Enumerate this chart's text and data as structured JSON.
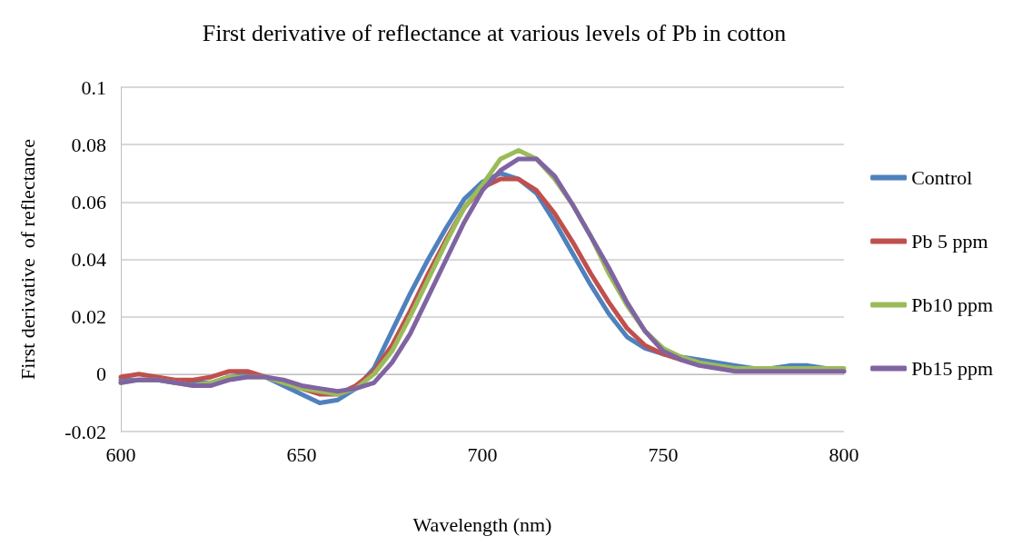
{
  "chart_data": {
    "type": "line",
    "title": "First derivative of reflectance at various levels of Pb in cotton",
    "xlabel": "Wavelength (nm)",
    "ylabel": "First derivative  of reflectance",
    "x": [
      600,
      605,
      610,
      615,
      620,
      625,
      630,
      635,
      640,
      645,
      650,
      655,
      660,
      665,
      670,
      675,
      680,
      685,
      690,
      695,
      700,
      705,
      710,
      715,
      720,
      725,
      730,
      735,
      740,
      745,
      750,
      755,
      760,
      765,
      770,
      775,
      780,
      785,
      790,
      795,
      800
    ],
    "series": [
      {
        "name": "Control",
        "color": "#4f81bd",
        "values": [
          -0.002,
          -0.002,
          -0.002,
          -0.003,
          -0.003,
          -0.003,
          -0.001,
          0,
          -0.001,
          -0.004,
          -0.007,
          -0.01,
          -0.009,
          -0.005,
          0.002,
          0.015,
          0.028,
          0.04,
          0.051,
          0.061,
          0.067,
          0.07,
          0.068,
          0.063,
          0.053,
          0.042,
          0.031,
          0.021,
          0.013,
          0.009,
          0.007,
          0.006,
          0.005,
          0.004,
          0.003,
          0.002,
          0.002,
          0.003,
          0.003,
          0.002,
          0.001
        ]
      },
      {
        "name": "Pb 5 ppm",
        "color": "#c0504d",
        "values": [
          -0.001,
          0,
          -0.001,
          -0.002,
          -0.002,
          -0.001,
          0.001,
          0.001,
          -0.001,
          -0.003,
          -0.005,
          -0.007,
          -0.007,
          -0.004,
          0.001,
          0.01,
          0.022,
          0.035,
          0.047,
          0.058,
          0.065,
          0.068,
          0.068,
          0.064,
          0.056,
          0.046,
          0.035,
          0.025,
          0.016,
          0.01,
          0.007,
          0.005,
          0.004,
          null,
          null,
          null,
          null,
          null,
          null,
          null,
          null
        ]
      },
      {
        "name": "Pb10 ppm",
        "color": "#9bbb59",
        "values": [
          -0.003,
          -0.002,
          -0.002,
          -0.003,
          -0.004,
          -0.003,
          -0.001,
          -0.001,
          -0.001,
          -0.003,
          -0.005,
          -0.006,
          -0.007,
          -0.005,
          0,
          0.008,
          0.02,
          0.033,
          0.046,
          0.058,
          0.066,
          0.075,
          0.078,
          0.075,
          0.068,
          0.059,
          0.048,
          0.035,
          0.024,
          0.015,
          0.009,
          0.006,
          0.004,
          0.003,
          0.002,
          0.002,
          0.002,
          0.002,
          0.002,
          0.002,
          0.002
        ]
      },
      {
        "name": "Pb15 ppm",
        "color": "#8064a2",
        "values": [
          -0.003,
          -0.002,
          -0.002,
          -0.003,
          -0.004,
          -0.004,
          -0.002,
          -0.001,
          -0.001,
          -0.002,
          -0.004,
          -0.005,
          -0.006,
          -0.005,
          -0.003,
          0.004,
          0.014,
          0.027,
          0.04,
          0.053,
          0.064,
          0.071,
          0.075,
          0.075,
          0.069,
          0.059,
          0.048,
          0.037,
          0.025,
          0.015,
          0.008,
          0.005,
          0.003,
          0.002,
          0.001,
          0.001,
          0.001,
          0.001,
          0.001,
          0.001,
          0.001
        ]
      }
    ],
    "xlim": [
      600,
      800
    ],
    "xticks": [
      600,
      650,
      700,
      750,
      800
    ],
    "ylim": [
      -0.02,
      0.1
    ],
    "yticks": [
      -0.02,
      0,
      0.02,
      0.04,
      0.06,
      0.08,
      0.1
    ],
    "grid": "y",
    "legend": "right",
    "marker": "none",
    "line_style": "solid"
  }
}
